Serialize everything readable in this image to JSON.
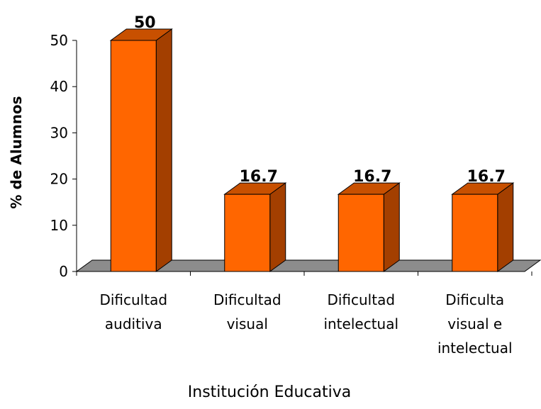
{
  "chart_data": {
    "type": "bar3d",
    "categories": [
      "Dificultad\nauditiva",
      "Dificultad\nvisual",
      "Dificultad\nintelectual",
      "Dificulta\nvisual e\nintelectual"
    ],
    "values": [
      50,
      16.7,
      16.7,
      16.7
    ],
    "color": "#ff6600",
    "ylim": [
      0,
      50
    ],
    "yticks": [
      0,
      10,
      20,
      30,
      40,
      50
    ],
    "ylabel": "% de Alumnos",
    "xlabel": "Institución Educativa"
  }
}
